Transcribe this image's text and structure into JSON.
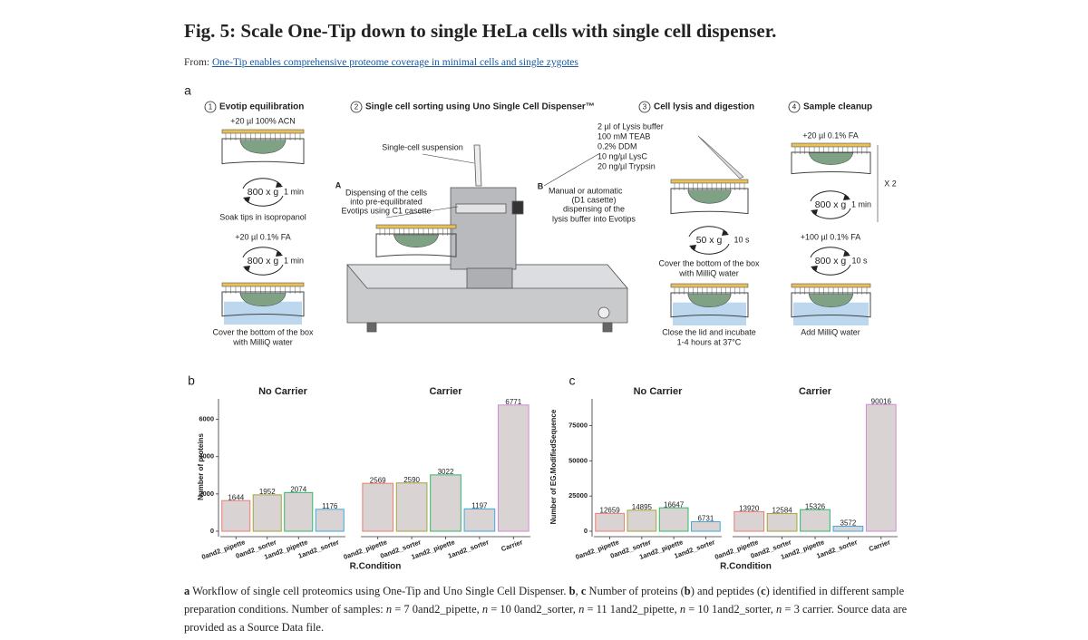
{
  "header": {
    "title": "Fig. 5: Scale One-Tip down to single HeLa cells with single cell dispenser.",
    "from_label": "From: ",
    "from_link": "One-Tip enables comprehensive proteome coverage in minimal cells and single zygotes"
  },
  "panel_a": {
    "label": "a",
    "steps": [
      {
        "number": "1",
        "title": "Evotip equilibration",
        "texts": [
          "+20 µl 100% ACN",
          "800 x g",
          "1 min",
          "Soak tips in isopropanol",
          "+20 µl 0.1% FA",
          "800 x g",
          "1 min",
          "Cover the bottom of the box",
          "with MilliQ water"
        ]
      },
      {
        "number": "2",
        "title": "Single cell sorting using Uno Single Cell Dispenser™",
        "texts": [
          "Single-cell suspension",
          "A",
          "Dispensing of the cells",
          "into pre-equilibrated",
          "Evotips using C1 casette",
          "B",
          "Manual or automatic",
          "(D1 casette)",
          "dispensing of the",
          "lysis buffer into Evotips"
        ]
      },
      {
        "number": "3",
        "title": "Cell lysis and digestion",
        "texts": [
          "2 µl of Lysis buffer",
          "100 mM TEAB",
          "0.2% DDM",
          "10 ng/µl LysC",
          "20 ng/µl Trypsin",
          "50 x g",
          "10 s",
          "Cover the bottom of the box",
          "with MilliQ water",
          "Close the lid and incubate",
          "1-4 hours at 37°C"
        ]
      },
      {
        "number": "4",
        "title": "Sample cleanup",
        "texts": [
          "+20 µl 0.1% FA",
          "800 x g",
          "1 min",
          "X 2",
          "+100 µl 0.1% FA",
          "800 x g",
          "10 s",
          "Add MilliQ water"
        ]
      }
    ]
  },
  "chart_data": [
    {
      "type": "bar",
      "label": "b",
      "ylabel": "Number of proteins",
      "xlabel": "R.Condition",
      "ylim": [
        0,
        7100
      ],
      "yticks": [
        0,
        2000,
        4000,
        6000
      ],
      "fill": "#d9d3d3",
      "series": [
        {
          "name": "No Carrier",
          "categories": [
            "0and2_pipette",
            "0and2_sorter",
            "1and2_pipette",
            "1and2_sorter"
          ],
          "values": [
            1644,
            1952,
            2074,
            1176
          ],
          "colors": [
            "#f07a72",
            "#a3a63a",
            "#2fb86a",
            "#3fa8e0"
          ]
        },
        {
          "name": "Carrier",
          "categories": [
            "0and2_pipette",
            "0and2_sorter",
            "1and2_pipette",
            "1and2_sorter",
            "Carrier"
          ],
          "values": [
            2569,
            2590,
            3022,
            1197,
            6771
          ],
          "colors": [
            "#f07a72",
            "#a3a63a",
            "#2fb86a",
            "#3fa8e0",
            "#d38ad6"
          ]
        }
      ]
    },
    {
      "type": "bar",
      "label": "c",
      "ylabel": "Number of EG.ModifiedSequence",
      "xlabel": "R.Condition",
      "ylim": [
        0,
        94000
      ],
      "yticks": [
        0,
        25000,
        50000,
        75000
      ],
      "fill": "#d9d3d3",
      "series": [
        {
          "name": "No Carrier",
          "categories": [
            "0and2_pipette",
            "0and2_sorter",
            "1and2_pipette",
            "1and2_sorter"
          ],
          "values": [
            12659,
            14895,
            16647,
            6731
          ],
          "colors": [
            "#f07a72",
            "#a3a63a",
            "#2fb86a",
            "#3fa8e0"
          ]
        },
        {
          "name": "Carrier",
          "categories": [
            "0and2_pipette",
            "0and2_sorter",
            "1and2_pipette",
            "1and2_sorter",
            "Carrier"
          ],
          "values": [
            13920,
            12584,
            15326,
            3572,
            90016
          ],
          "colors": [
            "#f07a72",
            "#a3a63a",
            "#2fb86a",
            "#3fa8e0",
            "#d38ad6"
          ]
        }
      ]
    }
  ],
  "caption": [
    "a",
    " Workflow of single cell proteomics using One-Tip and Uno Single Cell Dispenser. ",
    "b",
    ", ",
    "c",
    " Number of proteins (",
    "b",
    ") and peptides (",
    "c",
    ") identified in different sample preparation conditions. Number of samples: ",
    "n",
    " = 7 0and2_pipette, ",
    "n",
    " = 10 0and2_sorter, ",
    "n",
    " = 11 1and2_pipette, ",
    "n",
    " = 10 1and2_sorter, ",
    "n",
    " = 3 carrier. Source data are provided as a Source Data file."
  ]
}
